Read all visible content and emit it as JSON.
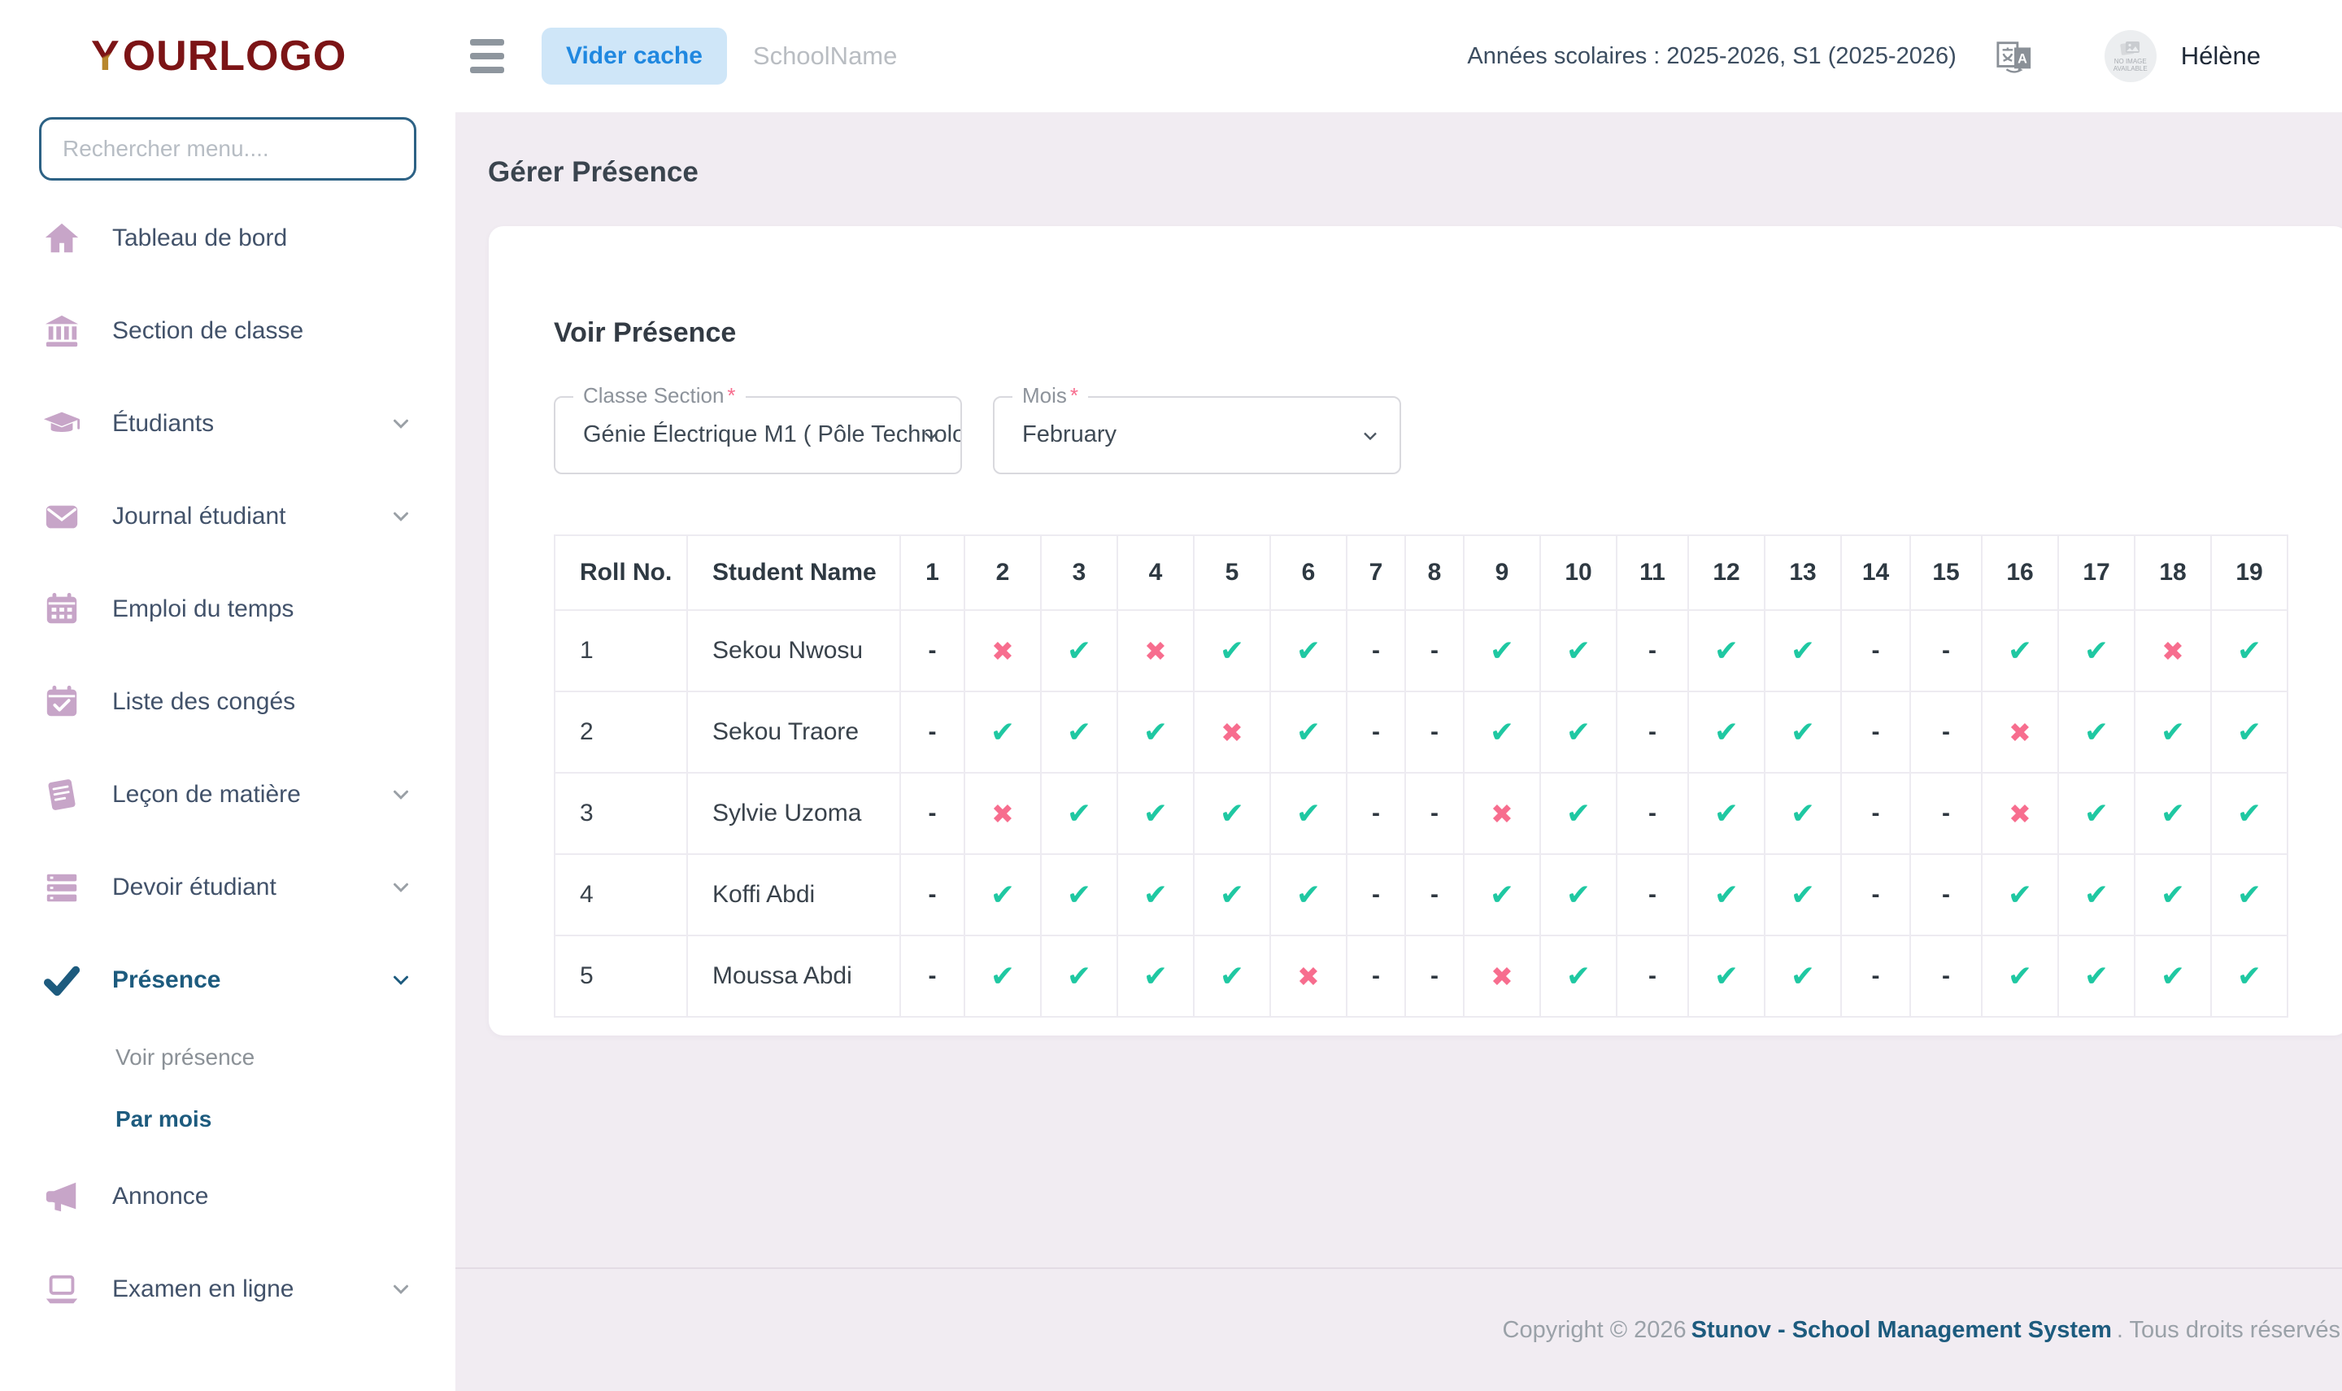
{
  "colors": {
    "background": "#f1ecf2",
    "accent_blue": "#2088e0",
    "accent_blue_bg": "#cfe6f8",
    "active_nav_blue": "#1d5b7e",
    "sidebar_icon_mauve": "#c7a5c8",
    "check_teal": "#1fc8a2",
    "cross_pink": "#f76d8e",
    "logo_maroon": "#7c1416",
    "logo_gold": "#b8872d"
  },
  "sidebar": {
    "logo_y": "Y",
    "logo_rest": "OURLOGO",
    "search_placeholder": "Rechercher menu....",
    "items": [
      {
        "key": "tableau-de-bord",
        "label": "Tableau de bord",
        "icon": "home-icon",
        "chevron": false,
        "active": false
      },
      {
        "key": "section-de-classe",
        "label": "Section de classe",
        "icon": "bank-icon",
        "chevron": false,
        "active": false
      },
      {
        "key": "etudiants",
        "label": "Étudiants",
        "icon": "graduation-cap-icon",
        "chevron": true,
        "active": false
      },
      {
        "key": "journal-etudiant",
        "label": "Journal étudiant",
        "icon": "envelope-icon",
        "chevron": true,
        "active": false
      },
      {
        "key": "emploi-du-temps",
        "label": "Emploi du temps",
        "icon": "calendar-icon",
        "chevron": false,
        "active": false
      },
      {
        "key": "liste-des-conges",
        "label": "Liste des congés",
        "icon": "calendar-check-icon",
        "chevron": false,
        "active": false
      },
      {
        "key": "lecon-de-matiere",
        "label": "Leçon de matière",
        "icon": "book-icon",
        "chevron": true,
        "active": false
      },
      {
        "key": "devoir-etudiant",
        "label": "Devoir étudiant",
        "icon": "list-icon",
        "chevron": true,
        "active": false
      },
      {
        "key": "presence",
        "label": "Présence",
        "icon": "check-icon",
        "chevron": true,
        "active": true,
        "submenu": [
          {
            "key": "voir-presence",
            "label": "Voir présence",
            "active": false
          },
          {
            "key": "par-mois",
            "label": "Par mois",
            "active": true
          }
        ]
      },
      {
        "key": "annonce",
        "label": "Annonce",
        "icon": "megaphone-icon",
        "chevron": false,
        "active": false
      },
      {
        "key": "examen-en-ligne",
        "label": "Examen en ligne",
        "icon": "laptop-icon",
        "chevron": true,
        "active": false
      }
    ]
  },
  "topbar": {
    "clear_cache_label": "Vider cache",
    "school_name": "SchoolName",
    "years_text": "Années scolaires : 2025-2026, S1 (2025-2026)",
    "avatar_placeholder": "NO IMAGE AVAILABLE",
    "user_name": "Hélène"
  },
  "page": {
    "title": "Gérer Présence"
  },
  "card": {
    "title": "Voir Présence",
    "filters": {
      "class_label": "Classe Section",
      "class_required": "*",
      "class_value": "Génie Électrique M1 ( Pôle Technolo",
      "month_label": "Mois",
      "month_required": "*",
      "month_value": "February"
    }
  },
  "attendance_table": {
    "fixed_columns": [
      "Roll No.",
      "Student Name"
    ],
    "day_columns": [
      "1",
      "2",
      "3",
      "4",
      "5",
      "6",
      "7",
      "8",
      "9",
      "10",
      "11",
      "12",
      "13",
      "14",
      "15",
      "16",
      "17",
      "18",
      "19"
    ],
    "legend": {
      "P": "present",
      "A": "absent",
      "-": "no-session"
    },
    "rows": [
      {
        "roll": "1",
        "name": "Sekou Nwosu",
        "marks": [
          "-",
          "A",
          "P",
          "A",
          "P",
          "P",
          "-",
          "-",
          "P",
          "P",
          "-",
          "P",
          "P",
          "-",
          "-",
          "P",
          "P",
          "A",
          "P"
        ]
      },
      {
        "roll": "2",
        "name": "Sekou Traore",
        "marks": [
          "-",
          "P",
          "P",
          "P",
          "A",
          "P",
          "-",
          "-",
          "P",
          "P",
          "-",
          "P",
          "P",
          "-",
          "-",
          "A",
          "P",
          "P",
          "P"
        ]
      },
      {
        "roll": "3",
        "name": "Sylvie Uzoma",
        "marks": [
          "-",
          "A",
          "P",
          "P",
          "P",
          "P",
          "-",
          "-",
          "A",
          "P",
          "-",
          "P",
          "P",
          "-",
          "-",
          "A",
          "P",
          "P",
          "P"
        ]
      },
      {
        "roll": "4",
        "name": "Koffi Abdi",
        "marks": [
          "-",
          "P",
          "P",
          "P",
          "P",
          "P",
          "-",
          "-",
          "P",
          "P",
          "-",
          "P",
          "P",
          "-",
          "-",
          "P",
          "P",
          "P",
          "P"
        ]
      },
      {
        "roll": "5",
        "name": "Moussa Abdi",
        "marks": [
          "-",
          "P",
          "P",
          "P",
          "P",
          "A",
          "-",
          "-",
          "A",
          "P",
          "-",
          "P",
          "P",
          "-",
          "-",
          "P",
          "P",
          "P",
          "P"
        ]
      }
    ]
  },
  "footer": {
    "copyright_prefix": "Copyright © 2026",
    "link_text": "Stunov - School Management System",
    "copyright_suffix": ". Tous droits réservés"
  }
}
